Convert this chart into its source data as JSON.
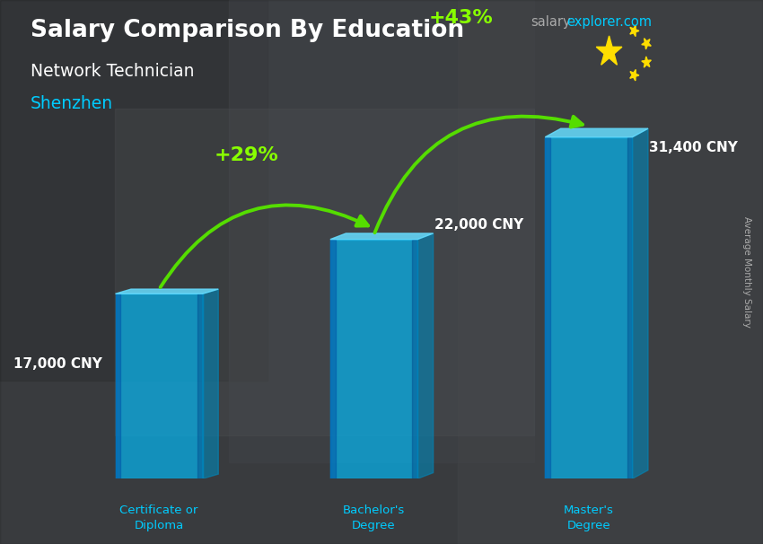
{
  "title": "Salary Comparison By Education",
  "subtitle": "Network Technician",
  "city": "Shenzhen",
  "ylabel": "Average Monthly Salary",
  "website_salary": "salary",
  "website_explorer": "explorer",
  "website_dot_com": ".com",
  "categories": [
    "Certificate or\nDiploma",
    "Bachelor's\nDegree",
    "Master's\nDegree"
  ],
  "values": [
    17000,
    22000,
    31400
  ],
  "value_labels": [
    "17,000 CNY",
    "22,000 CNY",
    "31,400 CNY"
  ],
  "pct_labels": [
    "+29%",
    "+43%"
  ],
  "bar_face_color": "#00bfff",
  "bar_alpha": 0.65,
  "bar_side_color": "#0088bb",
  "bar_top_color": "#66ddff",
  "bar_width": 0.13,
  "background_color": "#3a3a3a",
  "title_color": "#ffffff",
  "subtitle_color": "#ffffff",
  "city_color": "#00ccff",
  "value_label_color": "#ffffff",
  "pct_label_color": "#88ff00",
  "arrow_color": "#55dd00",
  "xlabel_color": "#00ccff",
  "ylabel_color": "#aaaaaa",
  "website_color_salary": "#aaaaaa",
  "website_color_explorer": "#00ccff",
  "website_color_com": "#00ccff",
  "ylim_max": 40000,
  "bar_positions": [
    0.18,
    0.5,
    0.82
  ],
  "flag_red": "#DE2910",
  "flag_yellow": "#FFDE00"
}
